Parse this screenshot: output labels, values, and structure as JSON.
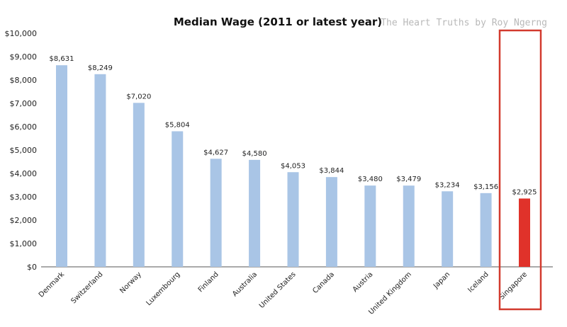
{
  "chart_data": {
    "type": "bar",
    "title": "Median Wage (2011 or latest year)",
    "watermark": "The Heart Truths by Roy Ngerng",
    "xlabel": "",
    "ylabel": "",
    "ylim": [
      0,
      10000
    ],
    "yticks": [
      "$0",
      "$1,000",
      "$2,000",
      "$3,000",
      "$4,000",
      "$5,000",
      "$6,000",
      "$7,000",
      "$8,000",
      "$9,000",
      "$10,000"
    ],
    "categories": [
      "Denmark",
      "Switzerland",
      "Norway",
      "Luxembourg",
      "Finland",
      "Australia",
      "United States",
      "Canada",
      "Austria",
      "United Kingdom",
      "Japan",
      "Iceland",
      "Singapore"
    ],
    "values": [
      8631,
      8249,
      7020,
      5804,
      4627,
      4580,
      4053,
      3844,
      3480,
      3479,
      3234,
      3156,
      2925
    ],
    "value_labels": [
      "$8,631",
      "$8,249",
      "$7,020",
      "$5,804",
      "$4,627",
      "$4,580",
      "$4,053",
      "$3,844",
      "$3,480",
      "$3,479",
      "$3,234",
      "$3,156",
      "$2,925"
    ],
    "grid": false,
    "colors": {
      "bar": "#a9c5e6",
      "highlight_bar": "#e0322a",
      "highlight_box": "#d23a2e",
      "axis": "#555555"
    },
    "highlight": "Singapore"
  }
}
